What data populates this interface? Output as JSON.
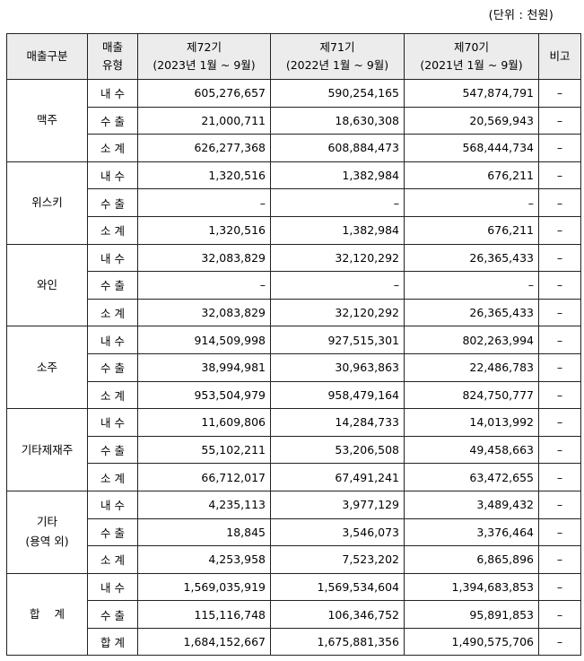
{
  "unit": "(단위 : 천원)",
  "headers": {
    "category": "매출구분",
    "type_line1": "매출",
    "type_line2": "유형",
    "p72_line1": "제72기",
    "p72_line2": "(2023년 1월 ~ 9월)",
    "p71_line1": "제71기",
    "p71_line2": "(2022년 1월 ~ 9월)",
    "p70_line1": "제70기",
    "p70_line2": "(2021년 1월 ~ 9월)",
    "note": "비고"
  },
  "groups": [
    {
      "category": "맥주",
      "rows": [
        {
          "type": "내 수",
          "p72": "605,276,657",
          "p71": "590,254,165",
          "p70": "547,874,791",
          "note": "–"
        },
        {
          "type": "수 출",
          "p72": "21,000,711",
          "p71": "18,630,308",
          "p70": "20,569,943",
          "note": "–"
        },
        {
          "type": "소 계",
          "p72": "626,277,368",
          "p71": "608,884,473",
          "p70": "568,444,734",
          "note": "–"
        }
      ]
    },
    {
      "category": "위스키",
      "rows": [
        {
          "type": "내 수",
          "p72": "1,320,516",
          "p71": "1,382,984",
          "p70": "676,211",
          "note": "–"
        },
        {
          "type": "수 출",
          "p72": "–",
          "p71": "–",
          "p70": "–",
          "note": "–"
        },
        {
          "type": "소 계",
          "p72": "1,320,516",
          "p71": "1,382,984",
          "p70": "676,211",
          "note": "–"
        }
      ]
    },
    {
      "category": "와인",
      "rows": [
        {
          "type": "내 수",
          "p72": "32,083,829",
          "p71": "32,120,292",
          "p70": "26,365,433",
          "note": "–"
        },
        {
          "type": "수 출",
          "p72": "–",
          "p71": "–",
          "p70": "–",
          "note": "–"
        },
        {
          "type": "소 계",
          "p72": "32,083,829",
          "p71": "32,120,292",
          "p70": "26,365,433",
          "note": "–"
        }
      ]
    },
    {
      "category": "소주",
      "rows": [
        {
          "type": "내 수",
          "p72": "914,509,998",
          "p71": "927,515,301",
          "p70": "802,263,994",
          "note": "–"
        },
        {
          "type": "수 출",
          "p72": "38,994,981",
          "p71": "30,963,863",
          "p70": "22,486,783",
          "note": "–"
        },
        {
          "type": "소 계",
          "p72": "953,504,979",
          "p71": "958,479,164",
          "p70": "824,750,777",
          "note": "–"
        }
      ]
    },
    {
      "category": "기타제재주",
      "rows": [
        {
          "type": "내 수",
          "p72": "11,609,806",
          "p71": "14,284,733",
          "p70": "14,013,992",
          "note": "–"
        },
        {
          "type": "수 출",
          "p72": "55,102,211",
          "p71": "53,206,508",
          "p70": "49,458,663",
          "note": "–"
        },
        {
          "type": "소 계",
          "p72": "66,712,017",
          "p71": "67,491,241",
          "p70": "63,472,655",
          "note": "–"
        }
      ]
    },
    {
      "category": "기타\n(용역 외)",
      "rows": [
        {
          "type": "내 수",
          "p72": "4,235,113",
          "p71": "3,977,129",
          "p70": "3,489,432",
          "note": "–"
        },
        {
          "type": "수 출",
          "p72": "18,845",
          "p71": "3,546,073",
          "p70": "3,376,464",
          "note": "–"
        },
        {
          "type": "소 계",
          "p72": "4,253,958",
          "p71": "7,523,202",
          "p70": "6,865,896",
          "note": "–"
        }
      ]
    },
    {
      "category": "합    계",
      "rows": [
        {
          "type": "내 수",
          "p72": "1,569,035,919",
          "p71": "1,569,534,604",
          "p70": "1,394,683,853",
          "note": "–"
        },
        {
          "type": "수 출",
          "p72": "115,116,748",
          "p71": "106,346,752",
          "p70": "95,891,853",
          "note": "–"
        },
        {
          "type": "합 계",
          "p72": "1,684,152,667",
          "p71": "1,675,881,356",
          "p70": "1,490,575,706",
          "note": "–"
        }
      ]
    }
  ]
}
